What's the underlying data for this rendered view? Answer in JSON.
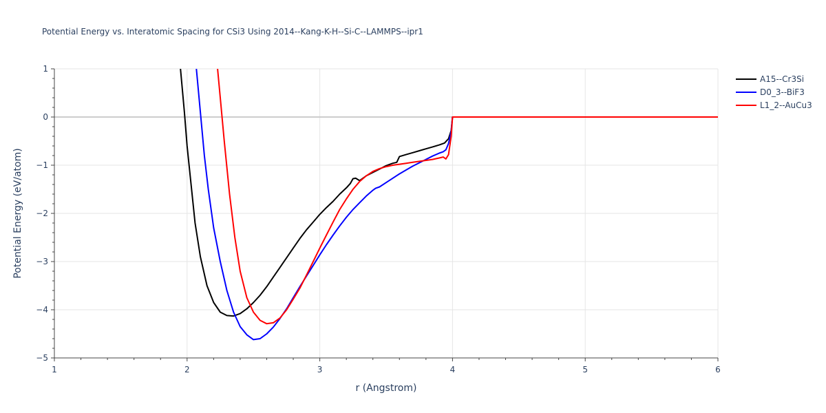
{
  "chart_data": {
    "type": "line",
    "title": "Potential Energy vs. Interatomic Spacing for CSi3 Using 2014--Kang-K-H--Si-C--LAMMPS--ipr1",
    "xlabel": "r (Angstrom)",
    "ylabel": "Potential Energy (eV/atom)",
    "xlim": [
      1,
      6
    ],
    "ylim": [
      -5,
      1
    ],
    "x_ticks": [
      1,
      2,
      3,
      4,
      5,
      6
    ],
    "x_tick_labels": [
      "1",
      "2",
      "3",
      "4",
      "5",
      "6"
    ],
    "y_ticks": [
      1,
      0,
      -1,
      -2,
      -3,
      -4,
      -5
    ],
    "y_tick_labels": [
      "1",
      "0",
      "−1",
      "−2",
      "−3",
      "−4",
      "−5"
    ],
    "grid": true,
    "legend_position": "top-right",
    "series": [
      {
        "name": "A15--Cr3Si",
        "color": "#000000",
        "points": [
          [
            1.95,
            1.0
          ],
          [
            1.98,
            0.1
          ],
          [
            2.0,
            -0.6
          ],
          [
            2.03,
            -1.4
          ],
          [
            2.06,
            -2.2
          ],
          [
            2.1,
            -2.9
          ],
          [
            2.15,
            -3.5
          ],
          [
            2.2,
            -3.85
          ],
          [
            2.25,
            -4.05
          ],
          [
            2.3,
            -4.12
          ],
          [
            2.35,
            -4.13
          ],
          [
            2.4,
            -4.08
          ],
          [
            2.45,
            -3.98
          ],
          [
            2.5,
            -3.85
          ],
          [
            2.55,
            -3.7
          ],
          [
            2.6,
            -3.52
          ],
          [
            2.65,
            -3.32
          ],
          [
            2.7,
            -3.12
          ],
          [
            2.75,
            -2.92
          ],
          [
            2.8,
            -2.72
          ],
          [
            2.85,
            -2.52
          ],
          [
            2.9,
            -2.34
          ],
          [
            2.95,
            -2.18
          ],
          [
            3.0,
            -2.02
          ],
          [
            3.05,
            -1.88
          ],
          [
            3.1,
            -1.75
          ],
          [
            3.15,
            -1.6
          ],
          [
            3.2,
            -1.47
          ],
          [
            3.23,
            -1.38
          ],
          [
            3.25,
            -1.28
          ],
          [
            3.27,
            -1.27
          ],
          [
            3.3,
            -1.32
          ],
          [
            3.35,
            -1.22
          ],
          [
            3.4,
            -1.15
          ],
          [
            3.45,
            -1.08
          ],
          [
            3.5,
            -1.01
          ],
          [
            3.55,
            -0.96
          ],
          [
            3.58,
            -0.94
          ],
          [
            3.6,
            -0.82
          ],
          [
            3.65,
            -0.78
          ],
          [
            3.7,
            -0.74
          ],
          [
            3.75,
            -0.7
          ],
          [
            3.8,
            -0.66
          ],
          [
            3.85,
            -0.62
          ],
          [
            3.9,
            -0.58
          ],
          [
            3.94,
            -0.54
          ],
          [
            3.97,
            -0.45
          ],
          [
            3.99,
            -0.28
          ],
          [
            4.0,
            0.0
          ],
          [
            6.0,
            0.0
          ]
        ]
      },
      {
        "name": "D0_3--BiF3",
        "color": "#0000ff",
        "points": [
          [
            2.07,
            1.0
          ],
          [
            2.1,
            0.1
          ],
          [
            2.13,
            -0.8
          ],
          [
            2.16,
            -1.5
          ],
          [
            2.2,
            -2.3
          ],
          [
            2.25,
            -3.0
          ],
          [
            2.3,
            -3.6
          ],
          [
            2.35,
            -4.05
          ],
          [
            2.4,
            -4.35
          ],
          [
            2.45,
            -4.52
          ],
          [
            2.5,
            -4.62
          ],
          [
            2.55,
            -4.6
          ],
          [
            2.6,
            -4.5
          ],
          [
            2.65,
            -4.36
          ],
          [
            2.7,
            -4.18
          ],
          [
            2.75,
            -3.98
          ],
          [
            2.8,
            -3.75
          ],
          [
            2.85,
            -3.52
          ],
          [
            2.9,
            -3.3
          ],
          [
            2.95,
            -3.08
          ],
          [
            3.0,
            -2.86
          ],
          [
            3.05,
            -2.65
          ],
          [
            3.1,
            -2.45
          ],
          [
            3.15,
            -2.26
          ],
          [
            3.2,
            -2.08
          ],
          [
            3.25,
            -1.92
          ],
          [
            3.3,
            -1.78
          ],
          [
            3.35,
            -1.64
          ],
          [
            3.4,
            -1.52
          ],
          [
            3.42,
            -1.48
          ],
          [
            3.45,
            -1.45
          ],
          [
            3.5,
            -1.36
          ],
          [
            3.55,
            -1.27
          ],
          [
            3.6,
            -1.18
          ],
          [
            3.65,
            -1.1
          ],
          [
            3.7,
            -1.02
          ],
          [
            3.75,
            -0.95
          ],
          [
            3.8,
            -0.88
          ],
          [
            3.85,
            -0.81
          ],
          [
            3.9,
            -0.75
          ],
          [
            3.93,
            -0.72
          ],
          [
            3.95,
            -0.68
          ],
          [
            3.97,
            -0.55
          ],
          [
            3.99,
            -0.3
          ],
          [
            4.0,
            0.0
          ],
          [
            6.0,
            0.0
          ]
        ]
      },
      {
        "name": "L1_2--AuCu3",
        "color": "#ff0000",
        "points": [
          [
            2.23,
            1.0
          ],
          [
            2.25,
            0.4
          ],
          [
            2.28,
            -0.5
          ],
          [
            2.32,
            -1.6
          ],
          [
            2.36,
            -2.5
          ],
          [
            2.4,
            -3.2
          ],
          [
            2.45,
            -3.75
          ],
          [
            2.5,
            -4.05
          ],
          [
            2.55,
            -4.22
          ],
          [
            2.6,
            -4.29
          ],
          [
            2.65,
            -4.27
          ],
          [
            2.7,
            -4.17
          ],
          [
            2.75,
            -4.0
          ],
          [
            2.8,
            -3.78
          ],
          [
            2.85,
            -3.55
          ],
          [
            2.9,
            -3.28
          ],
          [
            2.95,
            -3.0
          ],
          [
            3.0,
            -2.72
          ],
          [
            3.05,
            -2.45
          ],
          [
            3.1,
            -2.18
          ],
          [
            3.15,
            -1.92
          ],
          [
            3.2,
            -1.7
          ],
          [
            3.25,
            -1.5
          ],
          [
            3.3,
            -1.34
          ],
          [
            3.35,
            -1.22
          ],
          [
            3.4,
            -1.13
          ],
          [
            3.45,
            -1.07
          ],
          [
            3.5,
            -1.03
          ],
          [
            3.55,
            -1.0
          ],
          [
            3.6,
            -0.98
          ],
          [
            3.65,
            -0.96
          ],
          [
            3.7,
            -0.94
          ],
          [
            3.75,
            -0.92
          ],
          [
            3.8,
            -0.9
          ],
          [
            3.85,
            -0.88
          ],
          [
            3.9,
            -0.85
          ],
          [
            3.93,
            -0.83
          ],
          [
            3.95,
            -0.87
          ],
          [
            3.97,
            -0.78
          ],
          [
            3.99,
            -0.4
          ],
          [
            4.0,
            0.0
          ],
          [
            6.0,
            0.0
          ]
        ]
      }
    ]
  }
}
